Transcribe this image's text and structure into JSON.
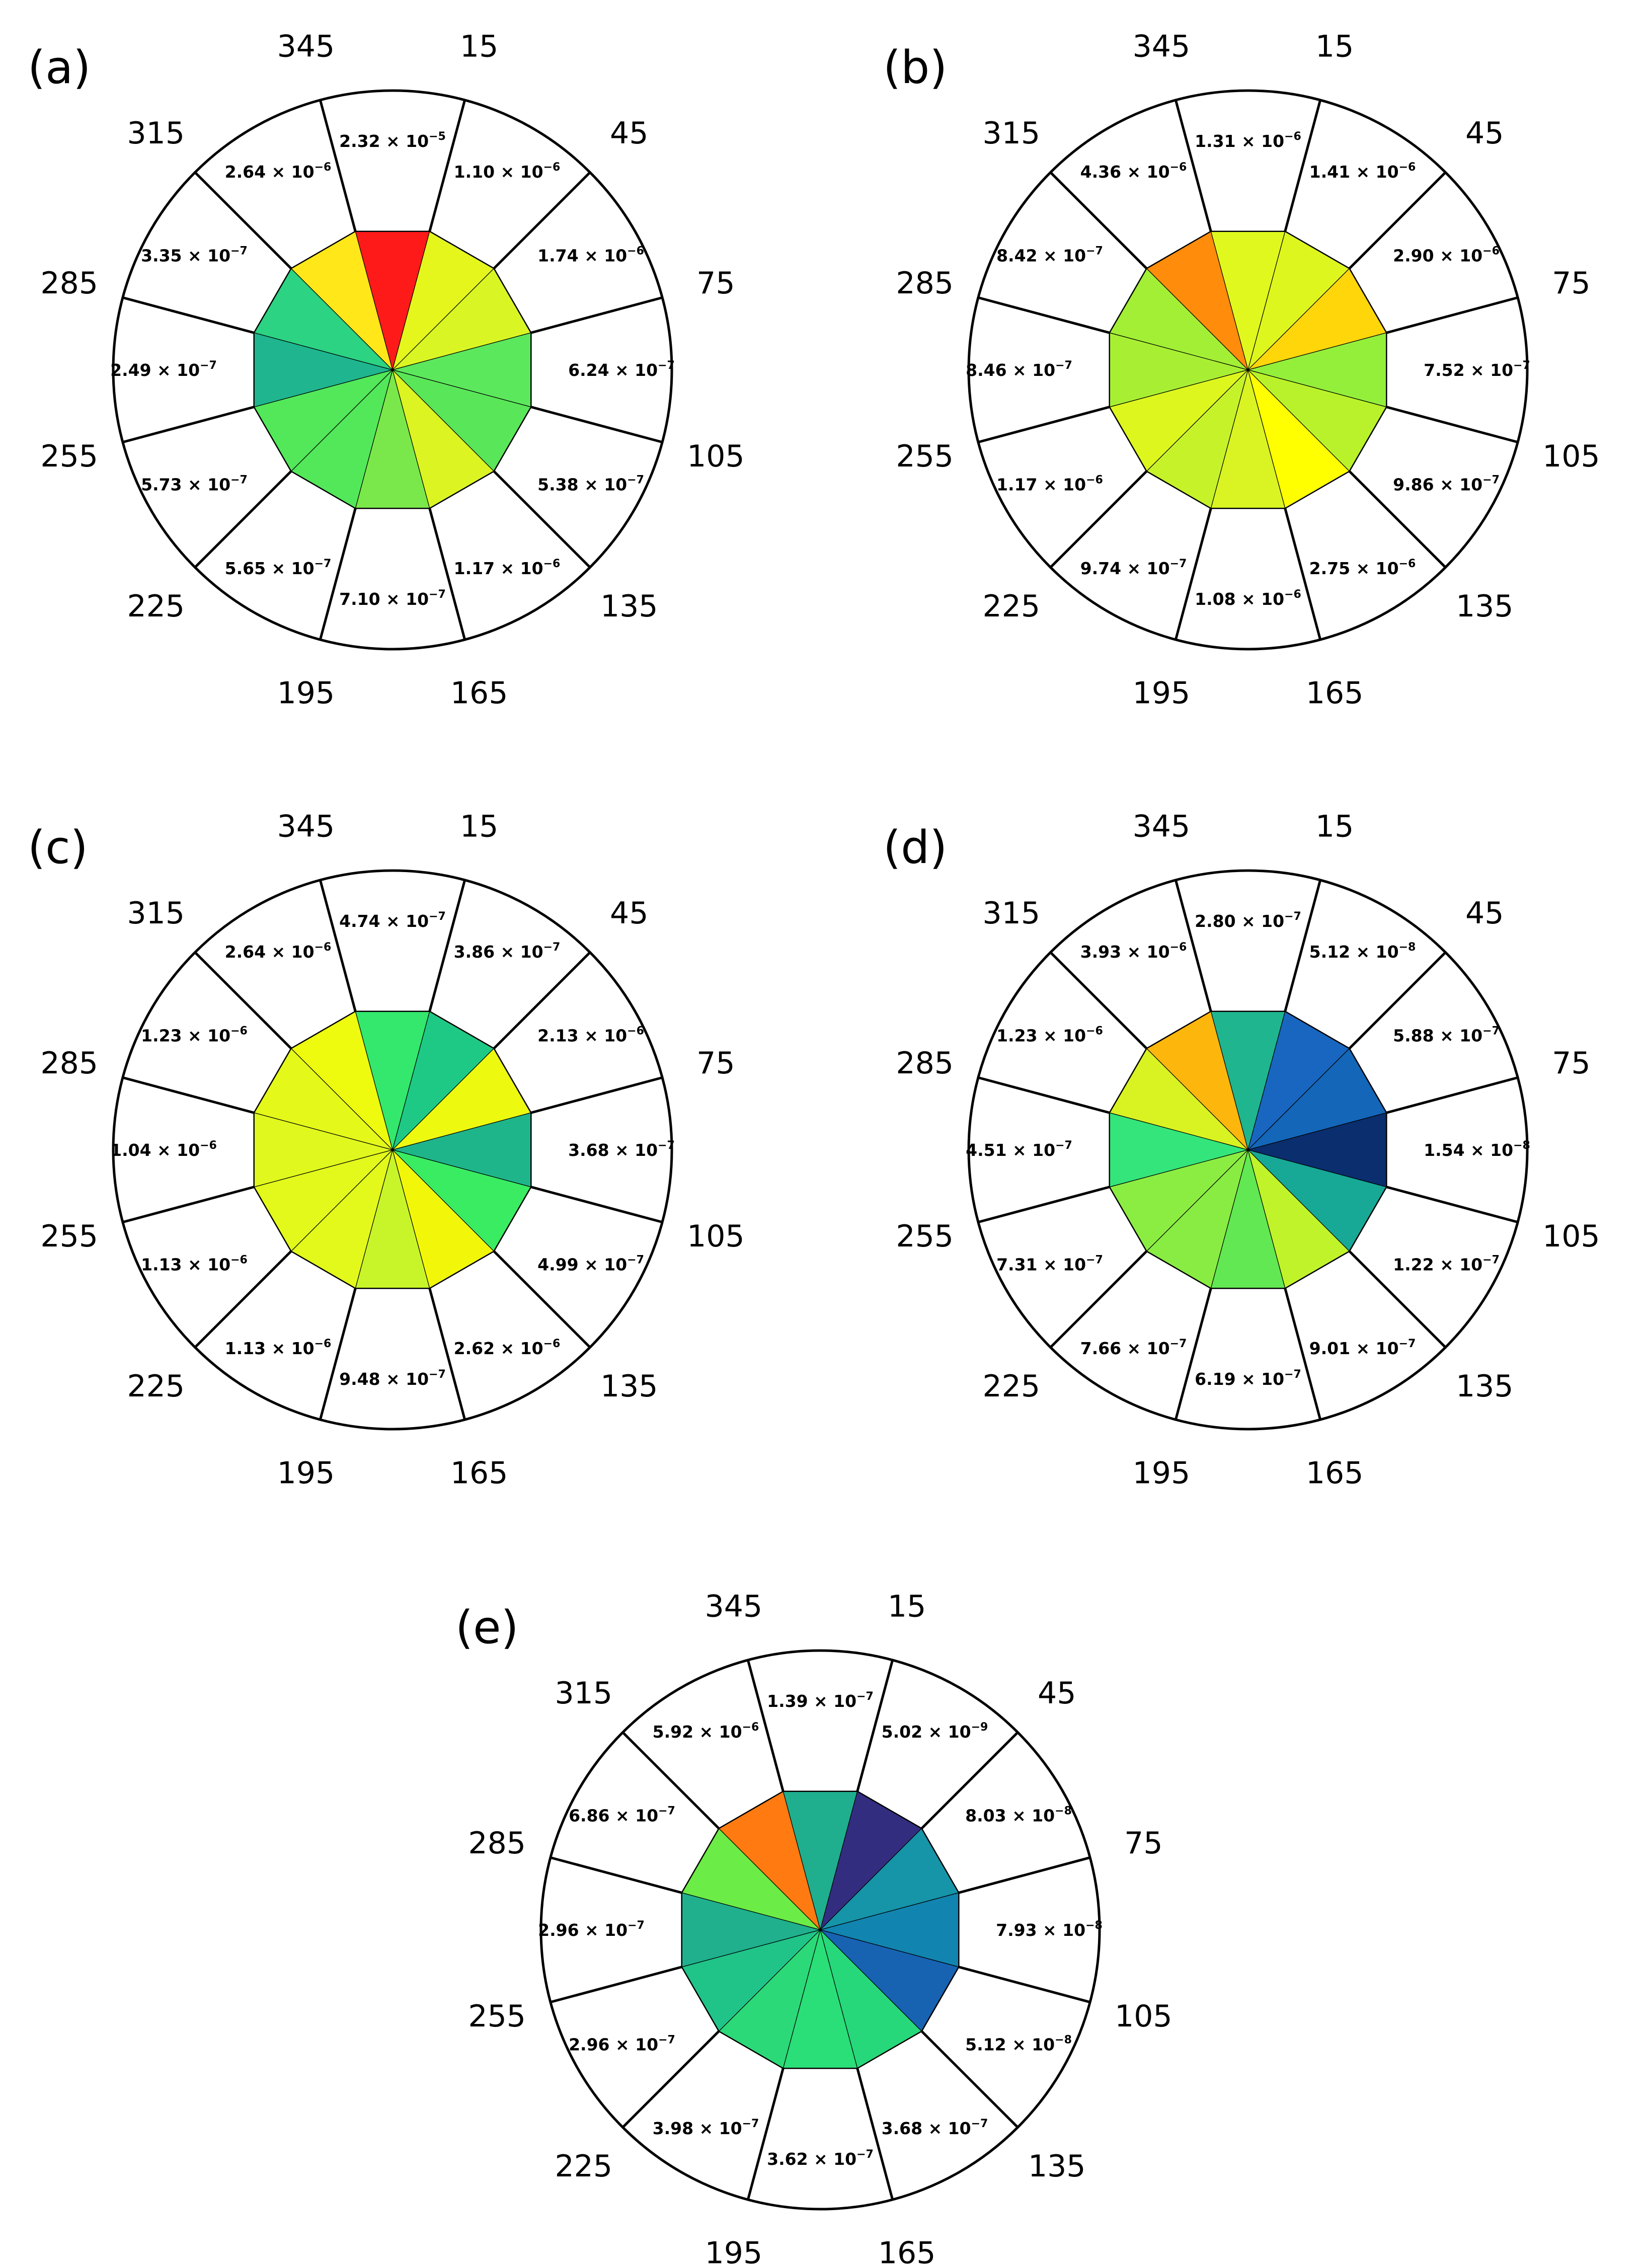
{
  "chart_data": [
    {
      "type": "polar-sector",
      "panel": "(a)",
      "directions": [
        "15",
        "45",
        "75",
        "105",
        "135",
        "165",
        "195",
        "225",
        "255",
        "285",
        "315",
        "345"
      ],
      "sectors": [
        {
          "direction": 0,
          "value_label": "2.32 × 10",
          "exponent": "−5",
          "color": "#ff1a1a"
        },
        {
          "direction": 30,
          "value_label": "1.10 × 10",
          "exponent": "−6",
          "color": "#e4f61c"
        },
        {
          "direction": 60,
          "value_label": "1.74 × 10",
          "exponent": "−6",
          "color": "#d9f624"
        },
        {
          "direction": 90,
          "value_label": "6.24 × 10",
          "exponent": "−7",
          "color": "#5ce85c"
        },
        {
          "direction": 120,
          "value_label": "5.38 × 10",
          "exponent": "−7",
          "color": "#5ae659"
        },
        {
          "direction": 150,
          "value_label": "1.17 × 10",
          "exponent": "−6",
          "color": "#dbf422"
        },
        {
          "direction": 180,
          "value_label": "7.10 × 10",
          "exponent": "−7",
          "color": "#7ae84a"
        },
        {
          "direction": 210,
          "value_label": "5.65 × 10",
          "exponent": "−7",
          "color": "#52e85a"
        },
        {
          "direction": 240,
          "value_label": "5.73 × 10",
          "exponent": "−7",
          "color": "#52e85a"
        },
        {
          "direction": 270,
          "value_label": "2.49 × 10",
          "exponent": "−7",
          "color": "#1fb58e"
        },
        {
          "direction": 300,
          "value_label": "3.35 × 10",
          "exponent": "−7",
          "color": "#2bd383"
        },
        {
          "direction": 330,
          "value_label": "2.64 × 10",
          "exponent": "−6",
          "color": "#ffe71a"
        }
      ]
    },
    {
      "type": "polar-sector",
      "panel": "(b)",
      "directions": [
        "15",
        "45",
        "75",
        "105",
        "135",
        "165",
        "195",
        "225",
        "255",
        "285",
        "315",
        "345"
      ],
      "sectors": [
        {
          "direction": 0,
          "value_label": "1.31 × 10",
          "exponent": "−6",
          "color": "#e0f81e"
        },
        {
          "direction": 30,
          "value_label": "1.41 × 10",
          "exponent": "−6",
          "color": "#ddf61e"
        },
        {
          "direction": 60,
          "value_label": "2.90 × 10",
          "exponent": "−6",
          "color": "#ffd60a"
        },
        {
          "direction": 90,
          "value_label": "7.52 × 10",
          "exponent": "−7",
          "color": "#94ef3a"
        },
        {
          "direction": 120,
          "value_label": "9.86 × 10",
          "exponent": "−7",
          "color": "#b9f22a"
        },
        {
          "direction": 150,
          "value_label": "2.75 × 10",
          "exponent": "−6",
          "color": "#ffff00"
        },
        {
          "direction": 180,
          "value_label": "1.08 × 10",
          "exponent": "−6",
          "color": "#d9f422"
        },
        {
          "direction": 210,
          "value_label": "9.74 × 10",
          "exponent": "−7",
          "color": "#c6f22a"
        },
        {
          "direction": 240,
          "value_label": "1.17 × 10",
          "exponent": "−6",
          "color": "#ddf61e"
        },
        {
          "direction": 270,
          "value_label": "8.46 × 10",
          "exponent": "−7",
          "color": "#a8ef34"
        },
        {
          "direction": 300,
          "value_label": "8.42 × 10",
          "exponent": "−7",
          "color": "#a2ef36"
        },
        {
          "direction": 330,
          "value_label": "4.36 × 10",
          "exponent": "−6",
          "color": "#ff8c0a"
        }
      ]
    },
    {
      "type": "polar-sector",
      "panel": "(c)",
      "directions": [
        "15",
        "45",
        "75",
        "105",
        "135",
        "165",
        "195",
        "225",
        "255",
        "285",
        "315",
        "345"
      ],
      "sectors": [
        {
          "direction": 0,
          "value_label": "4.74 × 10",
          "exponent": "−7",
          "color": "#33e86c"
        },
        {
          "direction": 30,
          "value_label": "3.86 × 10",
          "exponent": "−7",
          "color": "#1ec985"
        },
        {
          "direction": 60,
          "value_label": "2.13 × 10",
          "exponent": "−6",
          "color": "#edfa10"
        },
        {
          "direction": 90,
          "value_label": "3.68 × 10",
          "exponent": "−7",
          "color": "#1fb58a"
        },
        {
          "direction": 120,
          "value_label": "4.99 × 10",
          "exponent": "−7",
          "color": "#3aec62"
        },
        {
          "direction": 150,
          "value_label": "2.62 × 10",
          "exponent": "−6",
          "color": "#f2f70a"
        },
        {
          "direction": 180,
          "value_label": "9.48 × 10",
          "exponent": "−7",
          "color": "#c8f52a"
        },
        {
          "direction": 210,
          "value_label": "1.13 × 10",
          "exponent": "−6",
          "color": "#e2f91b"
        },
        {
          "direction": 240,
          "value_label": "1.13 × 10",
          "exponent": "−6",
          "color": "#e2f91b"
        },
        {
          "direction": 270,
          "value_label": "1.04 × 10",
          "exponent": "−6",
          "color": "#e0f81e"
        },
        {
          "direction": 300,
          "value_label": "1.23 × 10",
          "exponent": "−6",
          "color": "#e4f91a"
        },
        {
          "direction": 330,
          "value_label": "2.64 × 10",
          "exponent": "−6",
          "color": "#eefb0e"
        }
      ]
    },
    {
      "type": "polar-sector",
      "panel": "(d)",
      "directions": [
        "15",
        "45",
        "75",
        "105",
        "135",
        "165",
        "195",
        "225",
        "255",
        "285",
        "315",
        "345"
      ],
      "sectors": [
        {
          "direction": 0,
          "value_label": "2.80 × 10",
          "exponent": "−7",
          "color": "#1fb58e"
        },
        {
          "direction": 30,
          "value_label": "5.12 × 10",
          "exponent": "−8",
          "color": "#1866c0"
        },
        {
          "direction": 60,
          "value_label": "5.88 × 10",
          "exponent": "−7",
          "color": "#1466b8"
        },
        {
          "direction": 90,
          "value_label": "1.54 × 10",
          "exponent": "−8",
          "color": "#0a2e6e"
        },
        {
          "direction": 120,
          "value_label": "1.22 × 10",
          "exponent": "−7",
          "color": "#17a896"
        },
        {
          "direction": 150,
          "value_label": "9.01 × 10",
          "exponent": "−7",
          "color": "#c1f32a"
        },
        {
          "direction": 180,
          "value_label": "6.19 × 10",
          "exponent": "−7",
          "color": "#62e852"
        },
        {
          "direction": 210,
          "value_label": "7.66 × 10",
          "exponent": "−7",
          "color": "#88ec42"
        },
        {
          "direction": 240,
          "value_label": "7.31 × 10",
          "exponent": "−7",
          "color": "#8bed42"
        },
        {
          "direction": 270,
          "value_label": "4.51 × 10",
          "exponent": "−7",
          "color": "#33e57a"
        },
        {
          "direction": 300,
          "value_label": "1.23 × 10",
          "exponent": "−6",
          "color": "#d9f322"
        },
        {
          "direction": 330,
          "value_label": "3.93 × 10",
          "exponent": "−6",
          "color": "#fdb60c"
        }
      ]
    },
    {
      "type": "polar-sector",
      "panel": "(e)",
      "directions": [
        "15",
        "45",
        "75",
        "105",
        "135",
        "165",
        "195",
        "225",
        "255",
        "285",
        "315",
        "345"
      ],
      "sectors": [
        {
          "direction": 0,
          "value_label": "1.39 × 10",
          "exponent": "−7",
          "color": "#1fae8e"
        },
        {
          "direction": 30,
          "value_label": "5.02 × 10",
          "exponent": "−9",
          "color": "#332d80"
        },
        {
          "direction": 60,
          "value_label": "8.03 × 10",
          "exponent": "−8",
          "color": "#1694a8"
        },
        {
          "direction": 90,
          "value_label": "7.93 × 10",
          "exponent": "−8",
          "color": "#1284b0"
        },
        {
          "direction": 120,
          "value_label": "5.12 × 10",
          "exponent": "−8",
          "color": "#1862b2"
        },
        {
          "direction": 150,
          "value_label": "3.68 × 10",
          "exponent": "−7",
          "color": "#26d87a"
        },
        {
          "direction": 180,
          "value_label": "3.62 × 10",
          "exponent": "−7",
          "color": "#2ade78"
        },
        {
          "direction": 210,
          "value_label": "3.98 × 10",
          "exponent": "−7",
          "color": "#2cd978"
        },
        {
          "direction": 240,
          "value_label": "2.96 × 10",
          "exponent": "−7",
          "color": "#20c488"
        },
        {
          "direction": 270,
          "value_label": "2.96 × 10",
          "exponent": "−7",
          "color": "#20b08e"
        },
        {
          "direction": 300,
          "value_label": "6.86 × 10",
          "exponent": "−7",
          "color": "#6cec46"
        },
        {
          "direction": 330,
          "value_label": "5.92 × 10",
          "exponent": "−6",
          "color": "#ff7a10"
        }
      ]
    }
  ]
}
